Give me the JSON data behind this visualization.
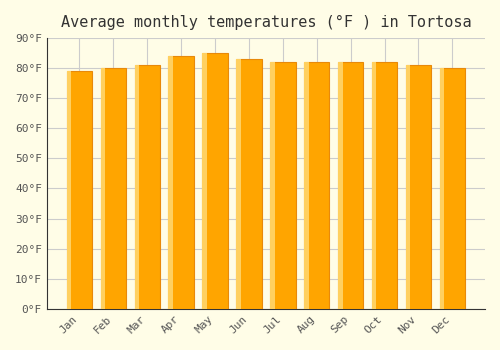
{
  "title": "Average monthly temperatures (°F ) in Tortosa",
  "months": [
    "Jan",
    "Feb",
    "Mar",
    "Apr",
    "May",
    "Jun",
    "Jul",
    "Aug",
    "Sep",
    "Oct",
    "Nov",
    "Dec"
  ],
  "values": [
    79,
    80,
    81,
    84,
    85,
    83,
    82,
    82,
    82,
    82,
    81,
    80
  ],
  "bar_color_main": "#FFA500",
  "bar_color_edge": "#E8890A",
  "bar_color_highlight": "#FFD060",
  "ylim": [
    0,
    90
  ],
  "yticks": [
    0,
    10,
    20,
    30,
    40,
    50,
    60,
    70,
    80,
    90
  ],
  "ytick_labels": [
    "0°F",
    "10°F",
    "20°F",
    "30°F",
    "40°F",
    "50°F",
    "60°F",
    "70°F",
    "80°F",
    "90°F"
  ],
  "background_color": "#FFFDE7",
  "grid_color": "#CCCCCC",
  "title_fontsize": 11,
  "tick_fontsize": 8,
  "font_family": "monospace"
}
